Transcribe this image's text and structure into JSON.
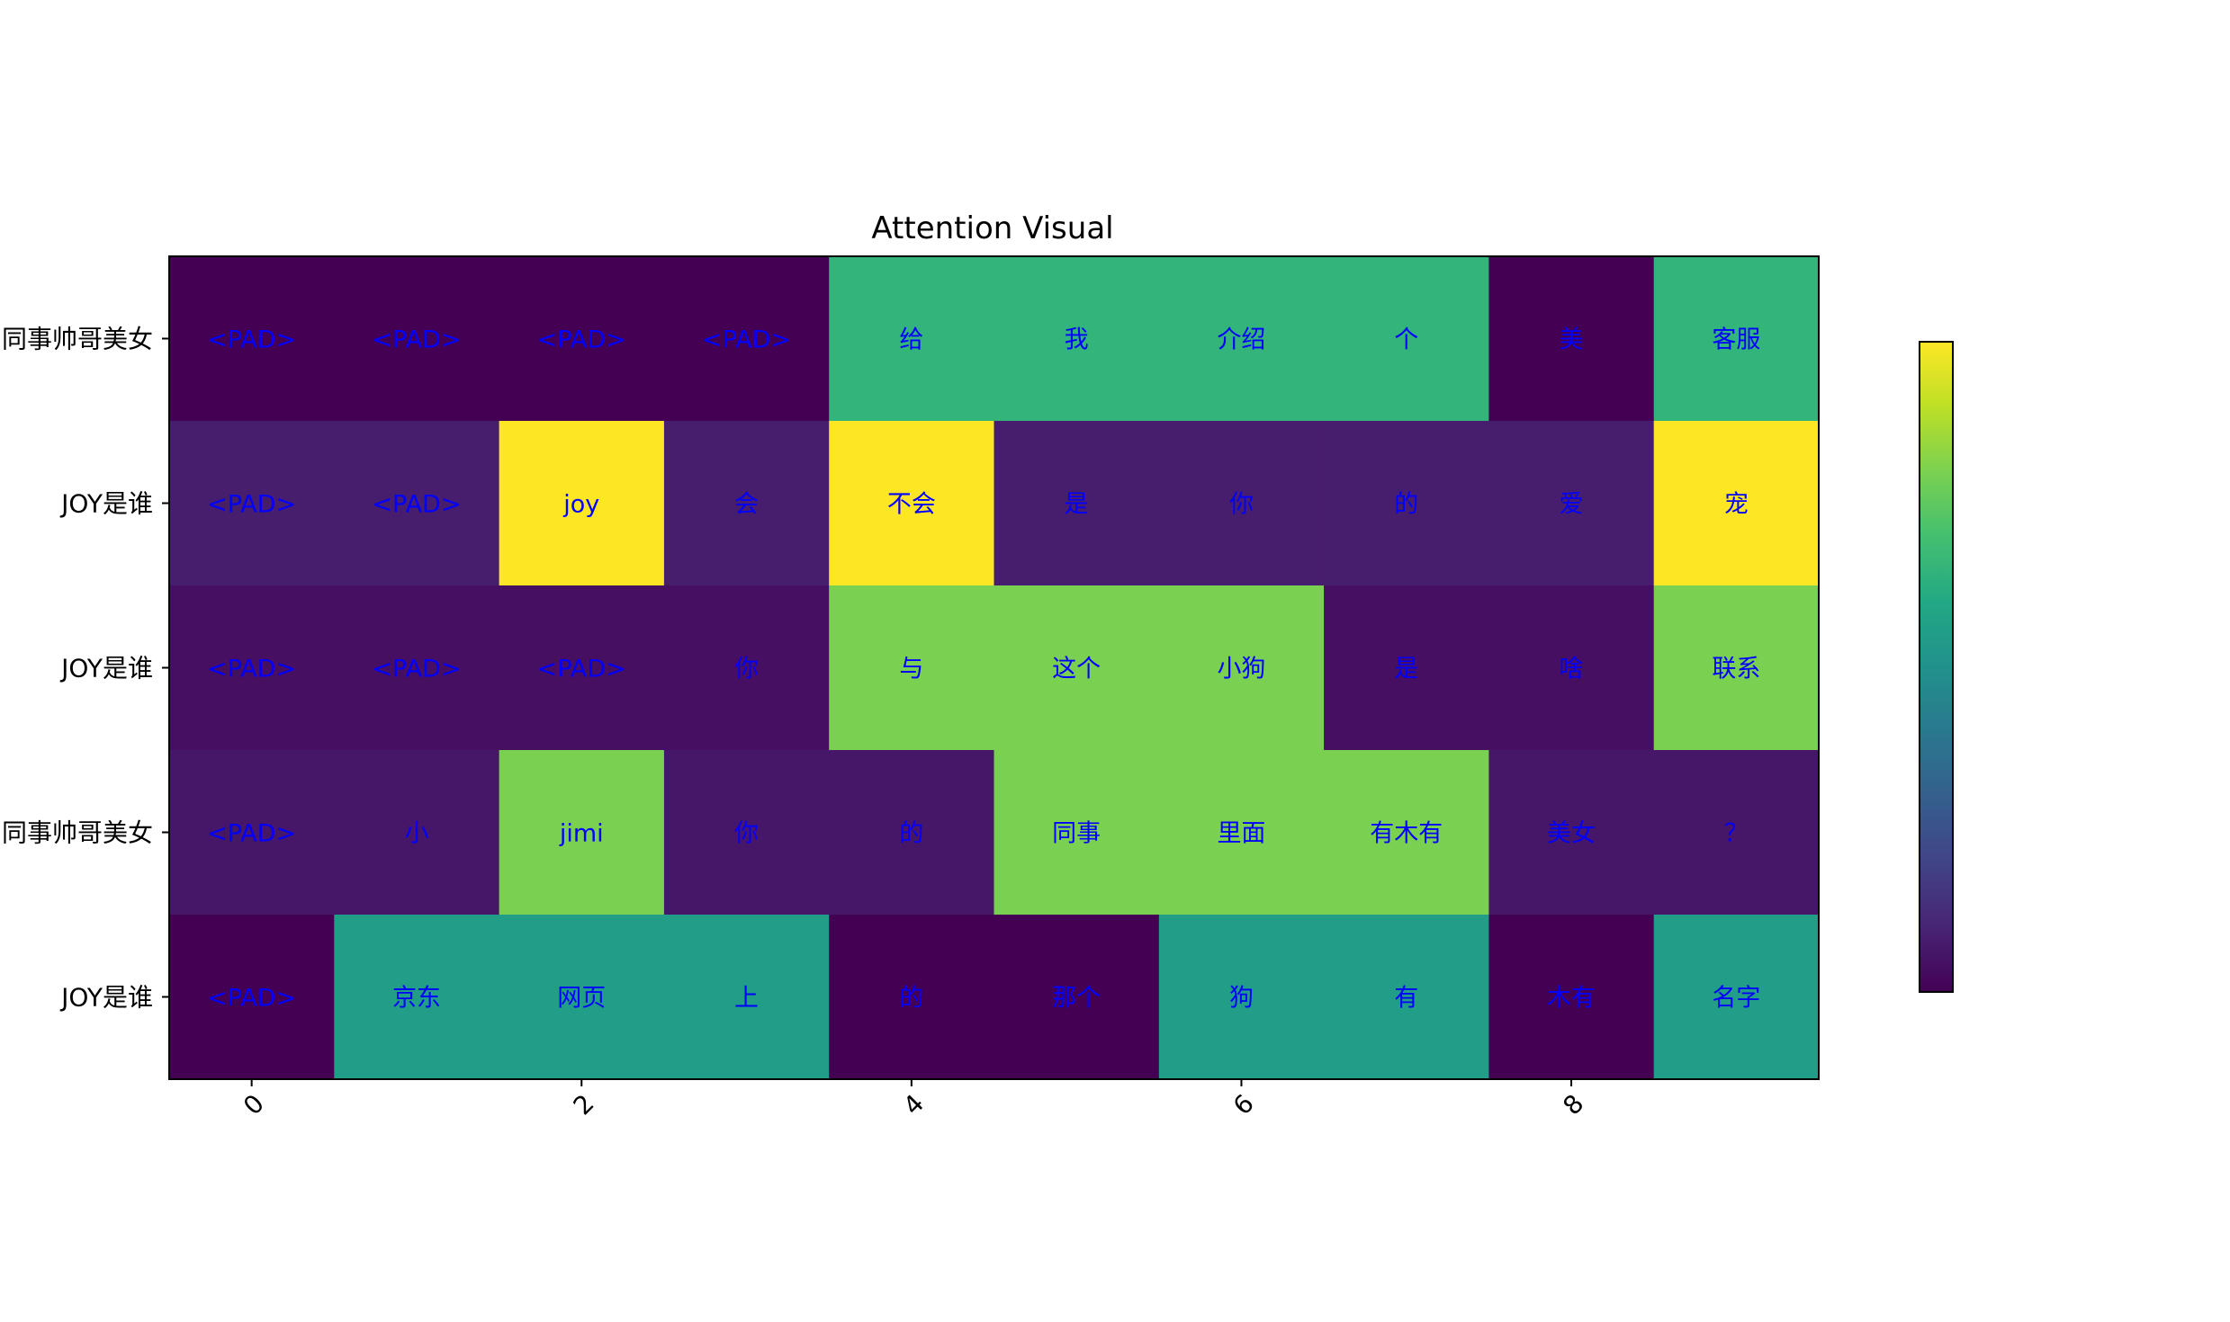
{
  "chart_data": {
    "type": "heatmap",
    "title": "Attention Visual",
    "xlabel": "",
    "ylabel": "",
    "x_ticks": [
      "0",
      "2",
      "4",
      "6",
      "8"
    ],
    "x_tick_positions": [
      0,
      2,
      4,
      6,
      8
    ],
    "x_range": [
      -0.5,
      9.5
    ],
    "y_labels": [
      "同事帅哥美女",
      "JOY是谁",
      "JOY是谁",
      "同事帅哥美女",
      "JOY是谁"
    ],
    "colormap": "viridis",
    "value_range": [
      0,
      1
    ],
    "colorbar": true,
    "cell_label_color": "#0000ff",
    "tokens": [
      [
        "<PAD>",
        "<PAD>",
        "<PAD>",
        "<PAD>",
        "给",
        "我",
        "介绍",
        "个",
        "美",
        "客服"
      ],
      [
        "<PAD>",
        "<PAD>",
        "joy",
        "会",
        "不会",
        "是",
        "你",
        "的",
        "爱",
        "宠"
      ],
      [
        "<PAD>",
        "<PAD>",
        "<PAD>",
        "你",
        "与",
        "这个",
        "小狗",
        "是",
        "啥",
        "联系"
      ],
      [
        "<PAD>",
        "小",
        "jimi",
        "你",
        "的",
        "同事",
        "里面",
        "有木有",
        "美女",
        "？"
      ],
      [
        "<PAD>",
        "京东",
        "网页",
        "上",
        "的",
        "那个",
        "狗",
        "有",
        "木有",
        "名字"
      ]
    ],
    "values": [
      [
        0.0,
        0.0,
        0.0,
        0.0,
        0.65,
        0.65,
        0.65,
        0.65,
        0.0,
        0.65
      ],
      [
        0.08,
        0.08,
        1.0,
        0.08,
        1.0,
        0.08,
        0.08,
        0.08,
        0.08,
        1.0
      ],
      [
        0.04,
        0.04,
        0.04,
        0.04,
        0.8,
        0.8,
        0.8,
        0.04,
        0.04,
        0.8
      ],
      [
        0.06,
        0.06,
        0.8,
        0.06,
        0.06,
        0.8,
        0.8,
        0.8,
        0.06,
        0.06
      ],
      [
        0.0,
        0.55,
        0.55,
        0.55,
        0.0,
        0.0,
        0.55,
        0.55,
        0.0,
        0.55
      ]
    ]
  }
}
